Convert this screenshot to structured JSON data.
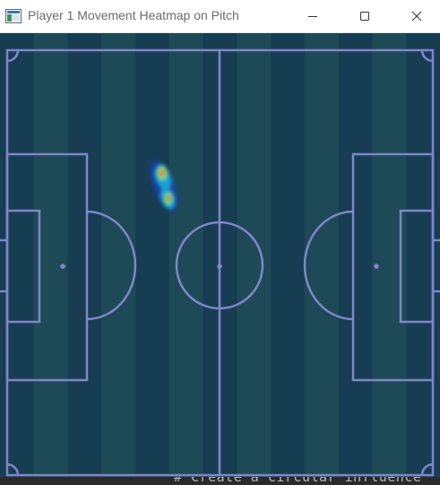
{
  "window": {
    "title": "Player 1 Movement Heatmap on Pitch",
    "buttons": {
      "minimize": "minimize-icon",
      "maximize": "maximize-icon",
      "close": "close-icon"
    }
  },
  "pitch": {
    "line_color": "#7f86c8",
    "stripe_colors": [
      "#173d53",
      "#1d4a56"
    ],
    "heat_colors": [
      "#1e3fbf",
      "#1fa6d6",
      "#2fd19a",
      "#c6d23a",
      "#d85a1e",
      "#a11010"
    ]
  },
  "console": {
    "visible_text": "# Create a circular influence"
  }
}
